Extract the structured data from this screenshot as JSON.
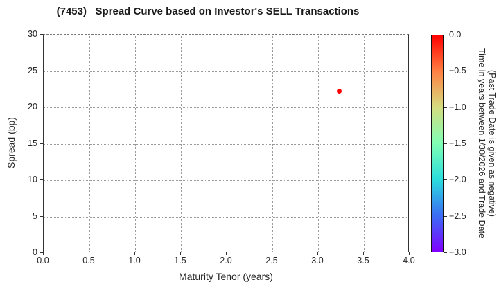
{
  "chart_data": {
    "type": "scatter",
    "title": "(7453)   Spread Curve based on Investor's SELL Transactions",
    "xlabel": "Maturity Tenor (years)",
    "ylabel": "Spread (bp)",
    "xlim": [
      0.0,
      4.0
    ],
    "ylim": [
      0,
      30
    ],
    "x_ticks": [
      0.0,
      0.5,
      1.0,
      1.5,
      2.0,
      2.5,
      3.0,
      3.5,
      4.0
    ],
    "x_tick_labels": [
      "0.0",
      "0.5",
      "1.0",
      "1.5",
      "2.0",
      "2.5",
      "3.0",
      "3.5",
      "4.0"
    ],
    "y_ticks": [
      0,
      5,
      10,
      15,
      20,
      25,
      30
    ],
    "y_tick_labels": [
      "0",
      "5",
      "10",
      "15",
      "20",
      "25",
      "30"
    ],
    "grid": "dotted",
    "legend": "none",
    "points": [
      {
        "x": 3.23,
        "y": 22.2,
        "color_value": 0.0,
        "color": "#ff0000"
      }
    ],
    "colorbar": {
      "colormap": "rainbow",
      "max": 0.0,
      "min": -3.0,
      "tick_labels": [
        "0.0",
        "−0.5",
        "−1.0",
        "−1.5",
        "−2.0",
        "−2.5",
        "−3.0"
      ],
      "label_line1": "Time in years between 1/30/2026 and Trade Date",
      "label_line2": "(Past Trade Date is given as negative)",
      "gradient_stops": [
        {
          "pos": 0.0,
          "color": "#8000ff"
        },
        {
          "pos": 0.1667,
          "color": "#3a6df5"
        },
        {
          "pos": 0.3333,
          "color": "#2bdddd"
        },
        {
          "pos": 0.5,
          "color": "#80ffb4"
        },
        {
          "pos": 0.6667,
          "color": "#d5dd80"
        },
        {
          "pos": 0.8333,
          "color": "#ff8042"
        },
        {
          "pos": 1.0,
          "color": "#ff0000"
        }
      ]
    }
  }
}
